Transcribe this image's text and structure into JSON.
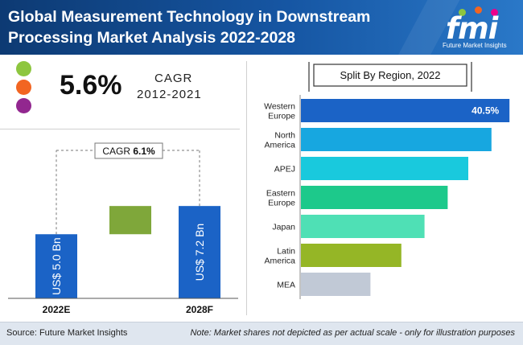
{
  "header": {
    "title_line1": "Global  Measurement Technology in Downstream",
    "title_line2": "Processing Market Analysis 2022-2028",
    "logo_text": "fmi",
    "logo_subtitle": "Future Market Insights"
  },
  "cagr": {
    "value": "5.6%",
    "label": "CAGR",
    "period": "2012-2021"
  },
  "colors": {
    "dot_green": "#8dc63f",
    "dot_orange": "#f26522",
    "dot_purple": "#92278f",
    "bar_blue": "#1b63c6",
    "bar_green": "#7fa73a"
  },
  "chart_data": [
    {
      "type": "bar",
      "categories": [
        "2022E",
        "2028F"
      ],
      "values": [
        5.0,
        7.2
      ],
      "value_labels": [
        "US$ 5.0 Bn",
        "US$ 7.2 Bn"
      ],
      "annotation": {
        "label": "CAGR",
        "value": "6.1%"
      }
    },
    {
      "type": "bar",
      "orientation": "horizontal",
      "title": "Split By Region, 2022",
      "categories": [
        "Western Europe",
        "North America",
        "APEJ",
        "Eastern Europe",
        "Japan",
        "Latin America",
        "MEA"
      ],
      "category_lines": [
        [
          "Western",
          "Europe"
        ],
        [
          "North",
          "America"
        ],
        [
          "APEJ"
        ],
        [
          "Eastern",
          "Europe"
        ],
        [
          "Japan"
        ],
        [
          "Latin",
          "America"
        ],
        [
          "MEA"
        ]
      ],
      "values": [
        40.5,
        37.0,
        32.5,
        28.5,
        24.0,
        19.5,
        13.5
      ],
      "data_labels": [
        "40.5%",
        "",
        "",
        "",
        "",
        "",
        ""
      ],
      "colors": [
        "#1b63c6",
        "#17a7e0",
        "#19c9dd",
        "#1dc98b",
        "#4fe0b5",
        "#95b626",
        "#c1c9d6"
      ]
    }
  ],
  "footer": {
    "source": "Source: Future Market Insights",
    "note": "Note: Market shares not depicted as per actual scale - only for illustration purposes"
  }
}
